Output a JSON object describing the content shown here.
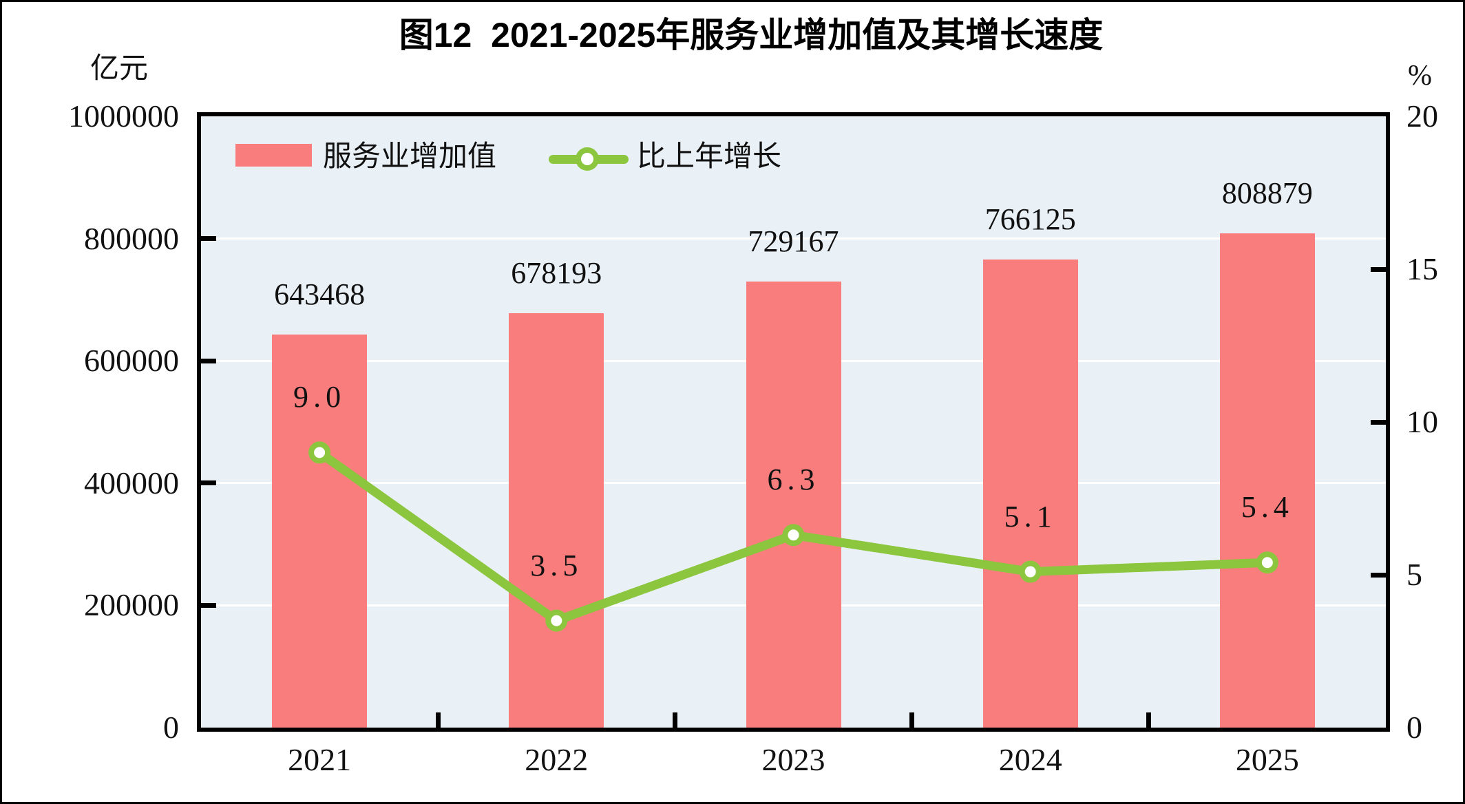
{
  "title": "图12  2021-2025年服务业增加值及其增长速度",
  "left_axis": {
    "unit": "亿元",
    "ticks": [
      "1000000",
      "800000",
      "600000",
      "400000",
      "200000",
      "0"
    ]
  },
  "right_axis": {
    "unit": "%",
    "ticks": [
      "20",
      "15",
      "10",
      "5",
      "0"
    ]
  },
  "legend": [
    {
      "label": "服务业增加值",
      "type": "bar"
    },
    {
      "label": "比上年增长",
      "type": "line"
    }
  ],
  "colors": {
    "bar": "#FA7D7D",
    "line": "#8CC63E",
    "marker_fill": "#FFFFFF",
    "plot_bg": "#EAF1F6",
    "grid": "#FFFFFF",
    "axis": "#000000",
    "text": "#111111"
  },
  "chart_data": {
    "type": "bar",
    "title": "图12  2021-2025年服务业增加值及其增长速度",
    "categories": [
      "2021",
      "2022",
      "2023",
      "2024",
      "2025"
    ],
    "series": [
      {
        "name": "服务业增加值",
        "type": "bar",
        "axis": "left",
        "unit": "亿元",
        "values": [
          643468,
          678193,
          729167,
          766125,
          808879
        ],
        "labels": [
          "643468",
          "678193",
          "729167",
          "766125",
          "808879"
        ]
      },
      {
        "name": "比上年增长",
        "type": "line",
        "axis": "right",
        "unit": "%",
        "values": [
          9.0,
          3.5,
          6.3,
          5.1,
          5.4
        ],
        "labels": [
          "9.0",
          "3.5",
          "6.3",
          "5.1",
          "5.4"
        ]
      }
    ],
    "left_ylim": [
      0,
      1000000
    ],
    "right_ylim": [
      0,
      20
    ],
    "grid": true,
    "legend_position": "top-inside"
  }
}
